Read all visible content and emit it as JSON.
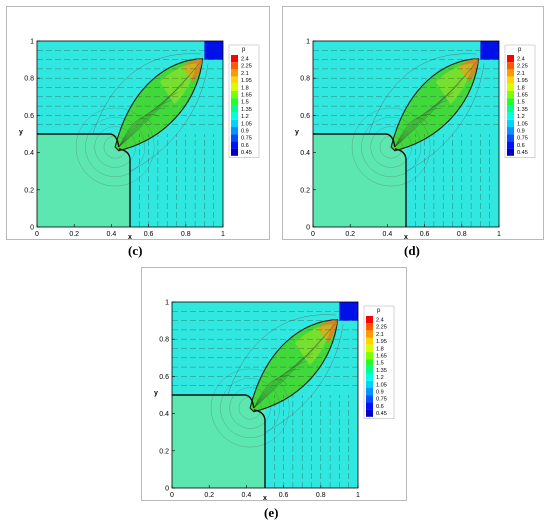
{
  "captions": [
    "(c)",
    "(d)",
    "(e)"
  ],
  "colors": {
    "background_field": "#30e8e0",
    "lower_left_field": "#5ce6b0",
    "lens_field": "#41d83c",
    "lens_tip": "#f07a20",
    "corner_block": "#0010e8",
    "mesh_line": "#b8b8b8"
  },
  "chart_data": [
    {
      "type": "heatmap",
      "panel_caption": "(c)",
      "xlabel": "x",
      "ylabel": "y",
      "xlim": [
        0,
        1
      ],
      "ylim": [
        0,
        1
      ],
      "x_ticks": [
        "0",
        "0.2",
        "0.4",
        "0.6",
        "0.8",
        "1"
      ],
      "y_ticks": [
        "0",
        "0.2",
        "0.4",
        "0.6",
        "0.8",
        "1"
      ],
      "legend_title": "p",
      "legend_position": "right",
      "legend_levels": [
        "2.4",
        "2.25",
        "2.1",
        "1.95",
        "1.8",
        "1.65",
        "1.5",
        "1.35",
        "1.2",
        "1.05",
        "0.9",
        "0.75",
        "0.6",
        "0.45"
      ],
      "legend_colors": [
        "#ff0000",
        "#ff5a00",
        "#ff9a00",
        "#ffd700",
        "#d6ff00",
        "#7dff00",
        "#1fff28",
        "#00ff90",
        "#00ffe6",
        "#00d2ff",
        "#0096ff",
        "#0050ff",
        "#0010ff",
        "#0000c0"
      ],
      "grid": false
    },
    {
      "type": "heatmap",
      "panel_caption": "(d)",
      "xlabel": "x",
      "ylabel": "y",
      "xlim": [
        0,
        1
      ],
      "ylim": [
        0,
        1
      ],
      "x_ticks": [
        "0",
        "0.2",
        "0.4",
        "0.6",
        "0.8",
        "1"
      ],
      "y_ticks": [
        "0",
        "0.2",
        "0.4",
        "0.6",
        "0.8",
        "1"
      ],
      "legend_title": "p",
      "legend_position": "right",
      "legend_levels": [
        "2.4",
        "2.25",
        "2.1",
        "1.95",
        "1.8",
        "1.65",
        "1.5",
        "1.35",
        "1.2",
        "1.05",
        "0.9",
        "0.75",
        "0.6",
        "0.45"
      ],
      "legend_colors": [
        "#ff0000",
        "#ff5a00",
        "#ff9a00",
        "#ffd700",
        "#d6ff00",
        "#7dff00",
        "#1fff28",
        "#00ff90",
        "#00ffe6",
        "#00d2ff",
        "#0096ff",
        "#0050ff",
        "#0010ff",
        "#0000c0"
      ],
      "grid": false
    },
    {
      "type": "heatmap",
      "panel_caption": "(e)",
      "xlabel": "x",
      "ylabel": "y",
      "xlim": [
        0,
        1
      ],
      "ylim": [
        0,
        1
      ],
      "x_ticks": [
        "0",
        "0.2",
        "0.4",
        "0.6",
        "0.8",
        "1"
      ],
      "y_ticks": [
        "0",
        "0.2",
        "0.4",
        "0.6",
        "0.8",
        "1"
      ],
      "legend_title": "p",
      "legend_position": "right",
      "legend_levels": [
        "2.4",
        "2.25",
        "2.1",
        "1.95",
        "1.8",
        "1.65",
        "1.5",
        "1.35",
        "1.2",
        "1.05",
        "0.9",
        "0.75",
        "0.6",
        "0.45"
      ],
      "legend_colors": [
        "#ff0000",
        "#ff5a00",
        "#ff9a00",
        "#ffd700",
        "#d6ff00",
        "#7dff00",
        "#1fff28",
        "#00ff90",
        "#00ffe6",
        "#00d2ff",
        "#0096ff",
        "#0050ff",
        "#0010ff",
        "#0000c0"
      ],
      "grid": false
    }
  ]
}
